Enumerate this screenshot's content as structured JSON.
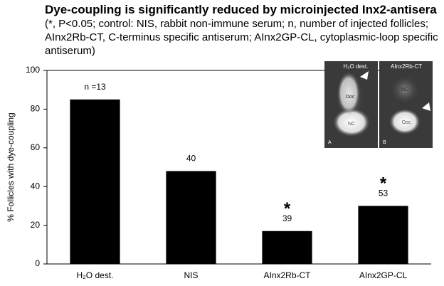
{
  "chart_data": {
    "type": "bar",
    "title": "Dye-coupling is significantly reduced by microinjected Inx2-antisera",
    "subtitle": "(*, P<0.05; control: NIS, rabbit non-immune serum; n, number of injected follicles; AInx2Rb-CT, C-terminus specific antiserum; AInx2GP-CL, cytoplasmic-loop specific antiserum)",
    "y_label": "% Follicles with dye-coupling",
    "categories": [
      "H₂O dest.",
      "NIS",
      "AInx2Rb-CT",
      "AInx2GP-CL"
    ],
    "values": [
      85,
      48,
      17,
      30
    ],
    "n_labels": [
      "n =13",
      "40",
      "39",
      "53"
    ],
    "significance": [
      null,
      null,
      "*",
      "*"
    ],
    "color": "#000000",
    "ylim": [
      0,
      100
    ],
    "yticks": [
      0,
      20,
      40,
      60,
      80,
      100
    ],
    "inset": {
      "panels": [
        {
          "label": "A",
          "title": "H₂O dest.",
          "regions": [
            "Ooc",
            "NC"
          ]
        },
        {
          "label": "B",
          "title": "AInx2Rb-CT",
          "regions": [
            "NC",
            "Ooc"
          ]
        }
      ]
    }
  }
}
